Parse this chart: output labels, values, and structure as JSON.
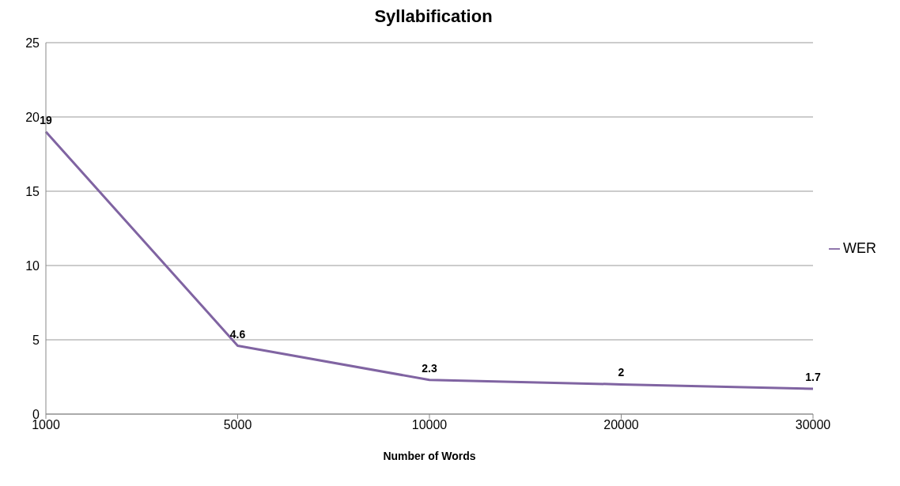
{
  "chart_data": {
    "type": "line",
    "title": "Syllabification",
    "xlabel": "Number of Words",
    "categories": [
      "1000",
      "5000",
      "10000",
      "20000",
      "30000"
    ],
    "series": [
      {
        "name": "WER",
        "color": "#8064a2",
        "values": [
          19,
          4.6,
          2.3,
          2,
          1.7
        ]
      }
    ],
    "ylim": [
      0,
      25
    ],
    "yticks": [
      0,
      5,
      10,
      15,
      20,
      25
    ],
    "grid": "y",
    "legend": "right",
    "data_labels": true,
    "marker": "none",
    "line_style": "solid"
  }
}
